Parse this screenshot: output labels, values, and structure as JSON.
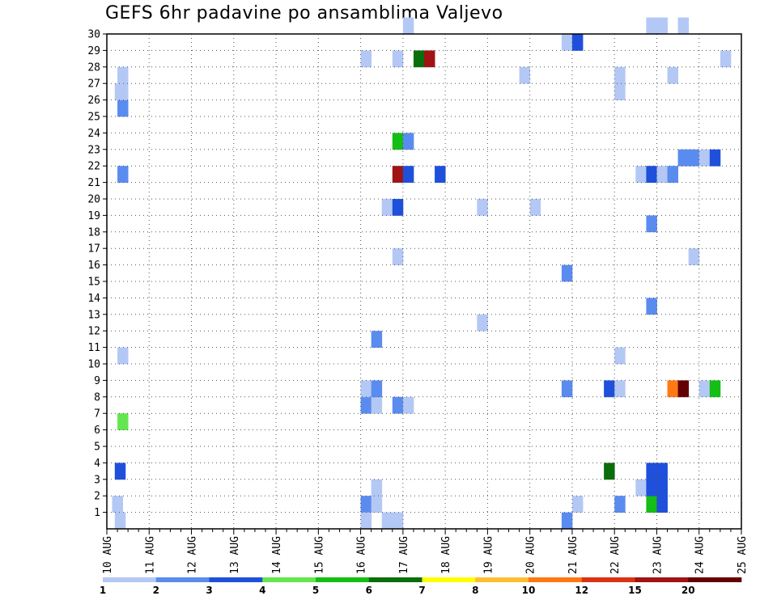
{
  "chart_data": {
    "type": "heatmap",
    "title": "GEFS 6hr padavine po ansamblima Valjevo",
    "xlabel": "",
    "ylabel": "",
    "x_ticks": [
      "10 AUG",
      "11 AUG",
      "12 AUG",
      "13 AUG",
      "14 AUG",
      "15 AUG",
      "16 AUG",
      "17 AUG",
      "18 AUG",
      "19 AUG",
      "20 AUG",
      "21 AUG",
      "22 AUG",
      "23 AUG",
      "24 AUG",
      "25 AUG"
    ],
    "y_ticks": [
      "1",
      "2",
      "3",
      "4",
      "5",
      "6",
      "7",
      "8",
      "9",
      "10",
      "11",
      "12",
      "13",
      "14",
      "15",
      "16",
      "17",
      "18",
      "19",
      "20",
      "21",
      "22",
      "23",
      "24",
      "25",
      "26",
      "27",
      "28",
      "29",
      "30"
    ],
    "ylim": [
      0,
      30
    ],
    "x_steps_per_day": 4,
    "grid": true,
    "colorbar": {
      "labels": [
        "1",
        "2",
        "3",
        "4",
        "5",
        "6",
        "7",
        "8",
        "10",
        "12",
        "15",
        "20"
      ],
      "colors": [
        "#b4c8f5",
        "#5a8cf0",
        "#1e50dc",
        "#64e650",
        "#14be14",
        "#0a6e0a",
        "#ffff00",
        "#ffbe32",
        "#ff7814",
        "#dc3214",
        "#a01414",
        "#640000"
      ]
    },
    "cells": [
      {
        "t": 0.5,
        "m": 1,
        "c": 0
      },
      {
        "t": 0.75,
        "m": 0,
        "c": 0
      },
      {
        "t": 0.75,
        "m": 3,
        "c": 2
      },
      {
        "t": 1,
        "m": 6,
        "c": 3
      },
      {
        "t": 1,
        "m": 10,
        "c": 0
      },
      {
        "t": 1,
        "m": 21,
        "c": 1
      },
      {
        "t": 1,
        "m": 25,
        "c": 1
      },
      {
        "t": 0.75,
        "m": 26,
        "c": 0
      },
      {
        "t": 1,
        "m": 26,
        "c": 0
      },
      {
        "t": 1,
        "m": 27,
        "c": 0
      },
      {
        "t": 24,
        "m": 1,
        "c": 1
      },
      {
        "t": 24,
        "m": 7,
        "c": 1
      },
      {
        "t": 24,
        "m": 8,
        "c": 0
      },
      {
        "t": 24,
        "m": 0,
        "c": 0
      },
      {
        "t": 25,
        "m": 1,
        "c": 0
      },
      {
        "t": 25,
        "m": 2,
        "c": 0
      },
      {
        "t": 25,
        "m": 7,
        "c": 0
      },
      {
        "t": 25,
        "m": 8,
        "c": 1
      },
      {
        "t": 25,
        "m": 11,
        "c": 1
      },
      {
        "t": 24,
        "m": 28,
        "c": 0
      },
      {
        "t": 26,
        "m": 0,
        "c": 0
      },
      {
        "t": 26,
        "m": 19,
        "c": 0
      },
      {
        "t": 27,
        "m": 0,
        "c": 0
      },
      {
        "t": 27,
        "m": 7,
        "c": 1
      },
      {
        "t": 27,
        "m": 16,
        "c": 0
      },
      {
        "t": 27,
        "m": 19,
        "c": 2
      },
      {
        "t": 27,
        "m": 21,
        "c": 10
      },
      {
        "t": 27,
        "m": 23,
        "c": 4
      },
      {
        "t": 27,
        "m": 28,
        "c": 0
      },
      {
        "t": 28,
        "m": 7,
        "c": 0
      },
      {
        "t": 28,
        "m": 21,
        "c": 2
      },
      {
        "t": 28,
        "m": 23,
        "c": 1
      },
      {
        "t": 28,
        "m": 30,
        "c": 0
      },
      {
        "t": 29,
        "m": 28,
        "c": 5
      },
      {
        "t": 30,
        "m": 28,
        "c": 10
      },
      {
        "t": 31,
        "m": 21,
        "c": 2
      },
      {
        "t": 35,
        "m": 12,
        "c": 0
      },
      {
        "t": 35,
        "m": 19,
        "c": 0
      },
      {
        "t": 39,
        "m": 27,
        "c": 0
      },
      {
        "t": 40,
        "m": 19,
        "c": 0
      },
      {
        "t": 43,
        "m": 0,
        "c": 1
      },
      {
        "t": 43,
        "m": 8,
        "c": 1
      },
      {
        "t": 43,
        "m": 15,
        "c": 1
      },
      {
        "t": 43,
        "m": 29,
        "c": 0
      },
      {
        "t": 44,
        "m": 1,
        "c": 0
      },
      {
        "t": 44,
        "m": 29,
        "c": 2
      },
      {
        "t": 47,
        "m": 3,
        "c": 5
      },
      {
        "t": 47,
        "m": 8,
        "c": 2
      },
      {
        "t": 48,
        "m": 1,
        "c": 1
      },
      {
        "t": 48,
        "m": 8,
        "c": 0
      },
      {
        "t": 48,
        "m": 10,
        "c": 0
      },
      {
        "t": 48,
        "m": 26,
        "c": 0
      },
      {
        "t": 48,
        "m": 27,
        "c": 0
      },
      {
        "t": 50,
        "m": 2,
        "c": 0
      },
      {
        "t": 50,
        "m": 21,
        "c": 0
      },
      {
        "t": 51,
        "m": 1,
        "c": 4
      },
      {
        "t": 51,
        "m": 2,
        "c": 2
      },
      {
        "t": 51,
        "m": 3,
        "c": 2
      },
      {
        "t": 51,
        "m": 13,
        "c": 1
      },
      {
        "t": 51,
        "m": 18,
        "c": 1
      },
      {
        "t": 51,
        "m": 21,
        "c": 2
      },
      {
        "t": 51,
        "m": 30,
        "c": 0
      },
      {
        "t": 52,
        "m": 1,
        "c": 2
      },
      {
        "t": 52,
        "m": 2,
        "c": 2
      },
      {
        "t": 52,
        "m": 3,
        "c": 2
      },
      {
        "t": 52,
        "m": 21,
        "c": 0
      },
      {
        "t": 52,
        "m": 30,
        "c": 0
      },
      {
        "t": 53,
        "m": 21,
        "c": 1
      },
      {
        "t": 53,
        "m": 27,
        "c": 0
      },
      {
        "t": 53,
        "m": 8,
        "c": 8
      },
      {
        "t": 54,
        "m": 8,
        "c": 11
      },
      {
        "t": 54,
        "m": 22,
        "c": 1
      },
      {
        "t": 54,
        "m": 30,
        "c": 0
      },
      {
        "t": 55,
        "m": 16,
        "c": 0
      },
      {
        "t": 55,
        "m": 22,
        "c": 1
      },
      {
        "t": 56,
        "m": 8,
        "c": 0
      },
      {
        "t": 56,
        "m": 22,
        "c": 0
      },
      {
        "t": 57,
        "m": 8,
        "c": 4
      },
      {
        "t": 57,
        "m": 22,
        "c": 2
      },
      {
        "t": 58,
        "m": 28,
        "c": 0
      }
    ]
  }
}
